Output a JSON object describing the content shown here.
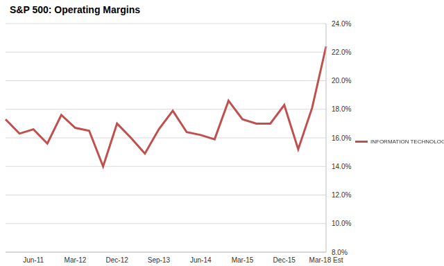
{
  "chart_data": {
    "type": "line",
    "title": "S&P 500: Operating Margins",
    "categories": [
      null,
      null,
      "Jun-11",
      null,
      null,
      "Mar-12",
      null,
      null,
      "Dec-12",
      null,
      null,
      "Sep-13",
      null,
      null,
      "Jun-14",
      null,
      null,
      "Mar-15",
      null,
      null,
      "Dec-15",
      null,
      null,
      "Mar-18 Est"
    ],
    "series": [
      {
        "name": "INFORMATION TECHNOLOGY",
        "color": "#c0504d",
        "values": [
          17.3,
          16.3,
          16.6,
          15.6,
          17.6,
          16.7,
          16.5,
          14.0,
          17.0,
          16.0,
          14.9,
          16.6,
          17.9,
          16.4,
          16.2,
          15.9,
          18.6,
          17.3,
          17.0,
          17.0,
          18.3,
          15.2,
          18.1,
          22.4
        ]
      }
    ],
    "ylim": [
      8,
      24
    ],
    "yticks": [
      {
        "value": 8,
        "label": "8.0%"
      },
      {
        "value": 10,
        "label": "10.0%"
      },
      {
        "value": 12,
        "label": "12.0%"
      },
      {
        "value": 14,
        "label": "14.0%"
      },
      {
        "value": 16,
        "label": "16.0%"
      },
      {
        "value": 18,
        "label": "18.0%"
      },
      {
        "value": 20,
        "label": "20.0%"
      },
      {
        "value": 22,
        "label": "22.0%"
      },
      {
        "value": 24,
        "label": "24.0%"
      }
    ],
    "grid": true,
    "legend": "right"
  }
}
